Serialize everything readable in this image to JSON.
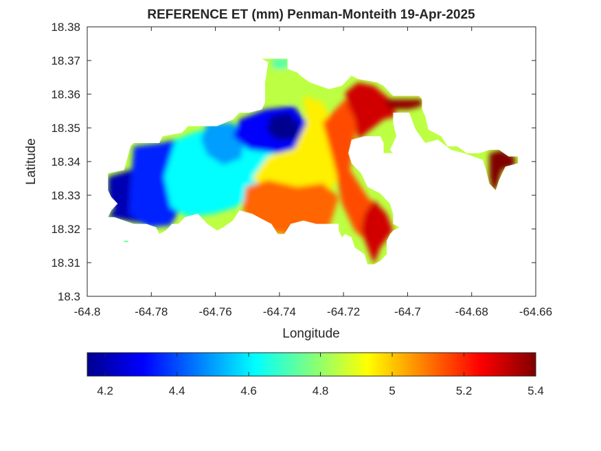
{
  "chart_data": {
    "type": "heatmap",
    "title": "REFERENCE ET (mm) Penman-Monteith 19-Apr-2025",
    "xlabel": "Longitude",
    "ylabel": "Latitude",
    "xlim": [
      -64.8,
      -64.66
    ],
    "ylim": [
      18.3,
      18.38
    ],
    "x_ticks": [
      -64.8,
      -64.78,
      -64.76,
      -64.74,
      -64.72,
      -64.7,
      -64.68,
      -64.66
    ],
    "x_tick_labels": [
      "-64.8",
      "-64.78",
      "-64.76",
      "-64.74",
      "-64.72",
      "-64.7",
      "-64.68",
      "-64.66"
    ],
    "y_ticks": [
      18.3,
      18.31,
      18.32,
      18.33,
      18.34,
      18.35,
      18.36,
      18.37,
      18.38
    ],
    "y_tick_labels": [
      "18.3",
      "18.31",
      "18.32",
      "18.33",
      "18.34",
      "18.35",
      "18.36",
      "18.37",
      "18.38"
    ],
    "grid": false,
    "colormap": "jet",
    "colorbar": {
      "orientation": "horizontal",
      "placement": "below",
      "range": [
        4.15,
        5.4
      ],
      "ticks": [
        4.2,
        4.4,
        4.6,
        4.8,
        5.0,
        5.2,
        5.4
      ],
      "tick_labels": [
        "4.2",
        "4.4",
        "4.6",
        "4.8",
        "5",
        "5.2",
        "5.4"
      ]
    },
    "regions": [
      {
        "name": "west-end-low",
        "value": 4.2,
        "boundary": [
          [
            -64.7935,
            18.3355
          ],
          [
            -64.785,
            18.338
          ],
          [
            -64.7755,
            18.3395
          ],
          [
            -64.7775,
            18.3345
          ],
          [
            -64.7775,
            18.329
          ],
          [
            -64.778,
            18.3235
          ],
          [
            -64.782,
            18.3215
          ],
          [
            -64.788,
            18.3225
          ],
          [
            -64.7935,
            18.3235
          ],
          [
            -64.7915,
            18.3265
          ],
          [
            -64.7935,
            18.3295
          ]
        ]
      },
      {
        "name": "west-blue",
        "value": 4.35,
        "boundary": [
          [
            -64.7855,
            18.3445
          ],
          [
            -64.777,
            18.3455
          ],
          [
            -64.7705,
            18.347
          ],
          [
            -64.769,
            18.339
          ],
          [
            -64.7695,
            18.3285
          ],
          [
            -64.774,
            18.321
          ],
          [
            -64.781,
            18.3205
          ],
          [
            -64.787,
            18.3245
          ],
          [
            -64.7865,
            18.333
          ]
        ]
      },
      {
        "name": "central-cyan",
        "value": 4.62,
        "boundary": [
          [
            -64.7725,
            18.3465
          ],
          [
            -64.7655,
            18.349
          ],
          [
            -64.756,
            18.3505
          ],
          [
            -64.746,
            18.3515
          ],
          [
            -64.7415,
            18.3455
          ],
          [
            -64.742,
            18.338
          ],
          [
            -64.746,
            18.3315
          ],
          [
            -64.7535,
            18.3265
          ],
          [
            -64.7605,
            18.3245
          ],
          [
            -64.7685,
            18.3235
          ],
          [
            -64.774,
            18.3265
          ],
          [
            -64.776,
            18.3355
          ]
        ]
      },
      {
        "name": "north-cyan-blob",
        "value": 4.5,
        "boundary": [
          [
            -64.7625,
            18.3515
          ],
          [
            -64.7545,
            18.3515
          ],
          [
            -64.751,
            18.3465
          ],
          [
            -64.752,
            18.341
          ],
          [
            -64.7575,
            18.339
          ],
          [
            -64.7625,
            18.342
          ],
          [
            -64.7645,
            18.3465
          ]
        ]
      },
      {
        "name": "north-blue",
        "value": 4.3,
        "boundary": [
          [
            -64.7525,
            18.3525
          ],
          [
            -64.7445,
            18.3555
          ],
          [
            -64.7355,
            18.3565
          ],
          [
            -64.7315,
            18.3515
          ],
          [
            -64.7325,
            18.3445
          ],
          [
            -64.7405,
            18.3425
          ],
          [
            -64.7495,
            18.3435
          ],
          [
            -64.7545,
            18.3475
          ]
        ]
      },
      {
        "name": "peak-low-core",
        "value": 4.15,
        "boundary": [
          [
            -64.7425,
            18.3535
          ],
          [
            -64.737,
            18.3545
          ],
          [
            -64.7335,
            18.3505
          ],
          [
            -64.735,
            18.3465
          ],
          [
            -64.741,
            18.3465
          ],
          [
            -64.744,
            18.3495
          ]
        ]
      },
      {
        "name": "north-lobe",
        "value": 4.85,
        "boundary": [
          [
            -64.7425,
            18.3705
          ],
          [
            -64.737,
            18.3705
          ],
          [
            -64.7375,
            18.3655
          ],
          [
            -64.7325,
            18.362
          ],
          [
            -64.7355,
            18.3575
          ],
          [
            -64.7415,
            18.3595
          ]
        ]
      },
      {
        "name": "north-lobe-top",
        "value": 4.72,
        "boundary": [
          [
            -64.7425,
            18.3705
          ],
          [
            -64.737,
            18.3705
          ],
          [
            -64.7375,
            18.3675
          ],
          [
            -64.742,
            18.3675
          ]
        ]
      },
      {
        "name": "center-yellow",
        "value": 4.95,
        "boundary": [
          [
            -64.7325,
            18.3595
          ],
          [
            -64.7265,
            18.3575
          ],
          [
            -64.7215,
            18.3475
          ],
          [
            -64.7205,
            18.3375
          ],
          [
            -64.7245,
            18.3305
          ],
          [
            -64.7335,
            18.3285
          ],
          [
            -64.7425,
            18.3305
          ],
          [
            -64.7485,
            18.335
          ],
          [
            -64.7435,
            18.3415
          ],
          [
            -64.7355,
            18.3435
          ],
          [
            -64.7315,
            18.3515
          ]
        ]
      },
      {
        "name": "south-orange",
        "value": 5.12,
        "boundary": [
          [
            -64.7505,
            18.3325
          ],
          [
            -64.7435,
            18.3345
          ],
          [
            -64.7345,
            18.3325
          ],
          [
            -64.7265,
            18.3335
          ],
          [
            -64.7215,
            18.3295
          ],
          [
            -64.7245,
            18.3205
          ],
          [
            -64.7305,
            18.3185
          ],
          [
            -64.7395,
            18.3185
          ],
          [
            -64.7465,
            18.3205
          ],
          [
            -64.7515,
            18.3255
          ]
        ]
      },
      {
        "name": "east-orange",
        "value": 5.15,
        "boundary": [
          [
            -64.7265,
            18.3515
          ],
          [
            -64.7195,
            18.3585
          ],
          [
            -64.7145,
            18.3545
          ],
          [
            -64.7165,
            18.3475
          ],
          [
            -64.718,
            18.3375
          ],
          [
            -64.7125,
            18.3295
          ],
          [
            -64.7065,
            18.3235
          ],
          [
            -64.7045,
            18.3195
          ],
          [
            -64.7105,
            18.3145
          ],
          [
            -64.7165,
            18.3195
          ],
          [
            -64.7205,
            18.3275
          ],
          [
            -64.7225,
            18.3375
          ],
          [
            -64.7245,
            18.3445
          ]
        ]
      },
      {
        "name": "east-red",
        "value": 5.3,
        "boundary": [
          [
            -64.7195,
            18.3605
          ],
          [
            -64.7155,
            18.3635
          ],
          [
            -64.7105,
            18.3625
          ],
          [
            -64.7055,
            18.3585
          ],
          [
            -64.7035,
            18.3535
          ],
          [
            -64.7075,
            18.3525
          ],
          [
            -64.7115,
            18.3495
          ],
          [
            -64.7155,
            18.3465
          ],
          [
            -64.7165,
            18.3525
          ],
          [
            -64.7185,
            18.3565
          ]
        ]
      },
      {
        "name": "southeast-red",
        "value": 5.3,
        "boundary": [
          [
            -64.7105,
            18.3285
          ],
          [
            -64.7065,
            18.3245
          ],
          [
            -64.7045,
            18.3195
          ],
          [
            -64.7085,
            18.3145
          ],
          [
            -64.7105,
            18.3095
          ],
          [
            -64.7125,
            18.3145
          ],
          [
            -64.7145,
            18.3195
          ],
          [
            -64.7135,
            18.3245
          ]
        ]
      },
      {
        "name": "east-tail",
        "value": 5.38,
        "boundary": [
          [
            -64.707,
            18.3585
          ],
          [
            -64.7005,
            18.3585
          ],
          [
            -64.6955,
            18.3585
          ],
          [
            -64.6955,
            18.3565
          ],
          [
            -64.6995,
            18.3555
          ],
          [
            -64.7045,
            18.3555
          ],
          [
            -64.7065,
            18.3565
          ]
        ]
      },
      {
        "name": "tail-end",
        "value": 5.4,
        "boundary": [
          [
            -64.6745,
            18.3425
          ],
          [
            -64.6705,
            18.3435
          ],
          [
            -64.6665,
            18.3415
          ],
          [
            -64.6665,
            18.3385
          ],
          [
            -64.6705,
            18.3375
          ],
          [
            -64.672,
            18.3325
          ],
          [
            -64.6735,
            18.3305
          ],
          [
            -64.6745,
            18.3355
          ]
        ]
      }
    ]
  }
}
